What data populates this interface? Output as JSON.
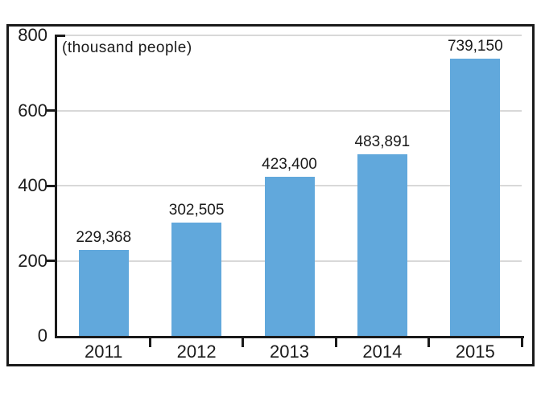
{
  "figure": {
    "unit_label": "(thousand people)"
  },
  "chart_data": {
    "type": "bar",
    "title": "",
    "subtitle": "",
    "unit_label": "(thousand people)",
    "categories": [
      "2011",
      "2012",
      "2013",
      "2014",
      "2015"
    ],
    "values": [
      229368,
      302505,
      423400,
      483891,
      739150
    ],
    "value_labels": [
      "229,368",
      "302,505",
      "423,400",
      "483,891",
      "739,150"
    ],
    "xlabel": "",
    "ylabel": "",
    "y_unit": "thousand people",
    "y_ticks": [
      0,
      200,
      400,
      600,
      800
    ],
    "ylim": [
      0,
      800
    ],
    "grid": "horizontal-light",
    "legend": "none",
    "bar_color": "#61A8DC"
  },
  "colors": {
    "bar": "#61A8DC",
    "axis": "#1a1a1a",
    "gridline": "#d8d8d8",
    "figure_border": "#1a1a1a",
    "background": "#ffffff",
    "label_text": "#1a1a1a"
  }
}
